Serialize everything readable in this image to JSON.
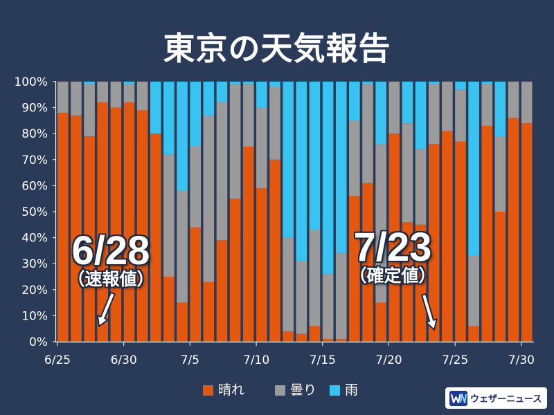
{
  "colors": {
    "background": "#293b58"
  },
  "chart_data": {
    "type": "bar",
    "stacked": true,
    "title": "東京の天気報告",
    "xlabel": "",
    "ylabel": "",
    "ylim": [
      0,
      100
    ],
    "yticks": [
      "0%",
      "10%",
      "20%",
      "30%",
      "40%",
      "50%",
      "60%",
      "70%",
      "80%",
      "90%",
      "100%"
    ],
    "grid": false,
    "legend_position": "bottom",
    "categories": [
      "6/25",
      "6/26",
      "6/27",
      "6/28",
      "6/29",
      "6/30",
      "7/1",
      "7/2",
      "7/3",
      "7/4",
      "7/5",
      "7/6",
      "7/7",
      "7/8",
      "7/9",
      "7/10",
      "7/11",
      "7/12",
      "7/13",
      "7/14",
      "7/15",
      "7/16",
      "7/17",
      "7/18",
      "7/19",
      "7/20",
      "7/21",
      "7/22",
      "7/23",
      "7/24",
      "7/25",
      "7/26",
      "7/27",
      "7/28",
      "7/29",
      "7/30"
    ],
    "series": [
      {
        "name": "晴れ",
        "color": "#e3570f",
        "values": [
          88,
          87,
          79,
          92,
          90,
          92,
          89,
          80,
          25,
          15,
          44,
          23,
          39,
          55,
          75,
          59,
          70,
          4,
          3,
          6,
          1,
          1,
          56,
          61,
          15,
          80,
          46,
          45,
          76,
          81,
          77,
          6,
          83,
          50,
          86,
          84
        ]
      },
      {
        "name": "曇り",
        "color": "#9b9b9b",
        "values": [
          12,
          13,
          20,
          8,
          10,
          7,
          11,
          0,
          47,
          43,
          31,
          64,
          53,
          44,
          24,
          31,
          28,
          36,
          28,
          37,
          25,
          33,
          29,
          38,
          61,
          20,
          38,
          29,
          23,
          19,
          20,
          27,
          16,
          29,
          14,
          16
        ]
      },
      {
        "name": "雨",
        "color": "#38c3f0",
        "values": [
          0,
          0,
          1,
          0,
          0,
          1,
          0,
          20,
          28,
          42,
          25,
          13,
          8,
          1,
          1,
          10,
          2,
          60,
          69,
          57,
          74,
          66,
          15,
          1,
          24,
          0,
          16,
          26,
          1,
          0,
          3,
          67,
          1,
          21,
          0,
          0
        ]
      }
    ],
    "annotations": [
      {
        "label": "6/28",
        "note": "（速報値）"
      },
      {
        "label": "7/23",
        "note": "（確定値）"
      }
    ]
  },
  "logo": {
    "text": "ウェザーニュース"
  }
}
